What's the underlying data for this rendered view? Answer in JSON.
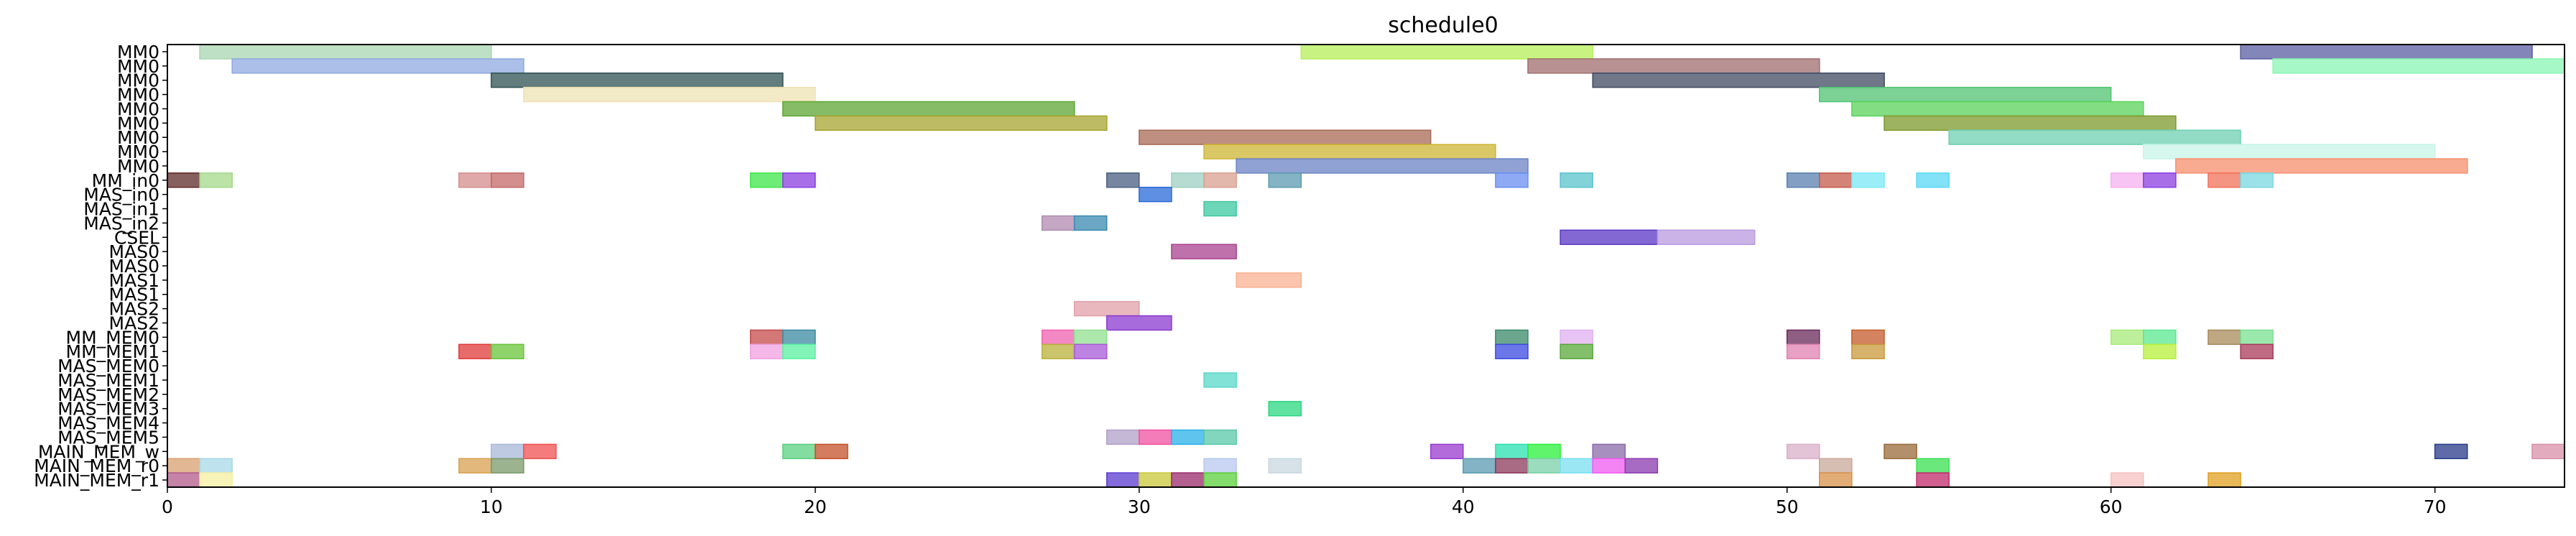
{
  "chart_data": {
    "type": "gantt",
    "title": "schedule0",
    "xlabel": "",
    "ylabel": "",
    "xlim": [
      0,
      74
    ],
    "xticks": [
      0,
      10,
      20,
      30,
      40,
      50,
      60,
      70
    ],
    "grid": false,
    "rows": [
      "MM0",
      "MM0",
      "MM0",
      "MM0",
      "MM0",
      "MM0",
      "MM0",
      "MM0",
      "MM0",
      "MM_in0",
      "MAS_in0",
      "MAS_in1",
      "MAS_in2",
      "CSEL",
      "MAS0",
      "MAS0",
      "MAS1",
      "MAS1",
      "MAS2",
      "MAS2",
      "MM_MEM0",
      "MM_MEM1",
      "MAS_MEM0",
      "MAS_MEM1",
      "MAS_MEM2",
      "MAS_MEM3",
      "MAS_MEM4",
      "MAS_MEM5",
      "MAIN_MEM_w",
      "MAIN_MEM_r0",
      "MAIN_MEM_r1"
    ],
    "bars": [
      {
        "row": 0,
        "start": 1,
        "end": 10,
        "color": "#a8d5b0"
      },
      {
        "row": 0,
        "start": 35,
        "end": 44,
        "color": "#b5ef5a"
      },
      {
        "row": 0,
        "start": 64,
        "end": 73,
        "color": "#5a5ea0"
      },
      {
        "row": 1,
        "start": 2,
        "end": 11,
        "color": "#8fa9e0"
      },
      {
        "row": 1,
        "start": 42,
        "end": 51,
        "color": "#a06e6e"
      },
      {
        "row": 1,
        "start": 65,
        "end": 74,
        "color": "#8af5b4"
      },
      {
        "row": 2,
        "start": 10,
        "end": 19,
        "color": "#2f5052"
      },
      {
        "row": 2,
        "start": 44,
        "end": 53,
        "color": "#3f4a60"
      },
      {
        "row": 3,
        "start": 11,
        "end": 20,
        "color": "#ede2b4"
      },
      {
        "row": 3,
        "start": 51,
        "end": 60,
        "color": "#4fc370"
      },
      {
        "row": 4,
        "start": 19,
        "end": 28,
        "color": "#5da631"
      },
      {
        "row": 4,
        "start": 52,
        "end": 61,
        "color": "#5ad35a"
      },
      {
        "row": 5,
        "start": 20,
        "end": 29,
        "color": "#a7a42f"
      },
      {
        "row": 5,
        "start": 53,
        "end": 62,
        "color": "#7d9a2c"
      },
      {
        "row": 6,
        "start": 30,
        "end": 39,
        "color": "#a86a55"
      },
      {
        "row": 6,
        "start": 55,
        "end": 64,
        "color": "#6ecfb2"
      },
      {
        "row": 7,
        "start": 32,
        "end": 41,
        "color": "#cdb534"
      },
      {
        "row": 7,
        "start": 61,
        "end": 70,
        "color": "#c7f4e8"
      },
      {
        "row": 8,
        "start": 33,
        "end": 42,
        "color": "#6a83c4"
      },
      {
        "row": 8,
        "start": 62,
        "end": 71,
        "color": "#f78f6e"
      },
      {
        "row": 9,
        "start": 0,
        "end": 1,
        "color": "#5e2a2a"
      },
      {
        "row": 9,
        "start": 1,
        "end": 2,
        "color": "#a4d98a"
      },
      {
        "row": 9,
        "start": 9,
        "end": 10,
        "color": "#d48c8c"
      },
      {
        "row": 9,
        "start": 10,
        "end": 11,
        "color": "#c46868"
      },
      {
        "row": 9,
        "start": 18,
        "end": 19,
        "color": "#3ee64a"
      },
      {
        "row": 9,
        "start": 19,
        "end": 20,
        "color": "#8a3de0"
      },
      {
        "row": 9,
        "start": 29,
        "end": 30,
        "color": "#4a5e80"
      },
      {
        "row": 9,
        "start": 31,
        "end": 32,
        "color": "#9ecfc0"
      },
      {
        "row": 9,
        "start": 32,
        "end": 33,
        "color": "#d9a090"
      },
      {
        "row": 9,
        "start": 34,
        "end": 35,
        "color": "#5a9ab0"
      },
      {
        "row": 9,
        "start": 41,
        "end": 42,
        "color": "#6a8ef0"
      },
      {
        "row": 9,
        "start": 43,
        "end": 44,
        "color": "#5ac2cc"
      },
      {
        "row": 9,
        "start": 50,
        "end": 51,
        "color": "#5a80b0"
      },
      {
        "row": 9,
        "start": 51,
        "end": 52,
        "color": "#c45a4a"
      },
      {
        "row": 9,
        "start": 52,
        "end": 53,
        "color": "#7ae8f5"
      },
      {
        "row": 9,
        "start": 54,
        "end": 55,
        "color": "#5ad8f5"
      },
      {
        "row": 9,
        "start": 60,
        "end": 61,
        "color": "#f5b0f0"
      },
      {
        "row": 9,
        "start": 61,
        "end": 62,
        "color": "#8a3de0"
      },
      {
        "row": 9,
        "start": 63,
        "end": 64,
        "color": "#f07058"
      },
      {
        "row": 9,
        "start": 64,
        "end": 65,
        "color": "#7ad8e0"
      },
      {
        "row": 10,
        "start": 30,
        "end": 31,
        "color": "#2a6ad8"
      },
      {
        "row": 11,
        "start": 32,
        "end": 33,
        "color": "#3ec8a0"
      },
      {
        "row": 12,
        "start": 27,
        "end": 28,
        "color": "#b08ab0"
      },
      {
        "row": 12,
        "start": 28,
        "end": 29,
        "color": "#3a8ab0"
      },
      {
        "row": 13,
        "start": 43,
        "end": 46,
        "color": "#5a36c4"
      },
      {
        "row": 13,
        "start": 46,
        "end": 49,
        "color": "#b99ae0"
      },
      {
        "row": 14,
        "start": 31,
        "end": 33,
        "color": "#a8428e"
      },
      {
        "row": 16,
        "start": 33,
        "end": 35,
        "color": "#f9b090"
      },
      {
        "row": 18,
        "start": 28,
        "end": 30,
        "color": "#e0a0a8"
      },
      {
        "row": 19,
        "start": 29,
        "end": 31,
        "color": "#8a3ad0"
      },
      {
        "row": 20,
        "start": 18,
        "end": 19,
        "color": "#c44a4a"
      },
      {
        "row": 20,
        "start": 19,
        "end": 20,
        "color": "#3a8aa0"
      },
      {
        "row": 20,
        "start": 27,
        "end": 28,
        "color": "#f060b0"
      },
      {
        "row": 20,
        "start": 28,
        "end": 29,
        "color": "#90e090"
      },
      {
        "row": 20,
        "start": 41,
        "end": 42,
        "color": "#3a8a6a"
      },
      {
        "row": 20,
        "start": 43,
        "end": 44,
        "color": "#e0b0f0"
      },
      {
        "row": 20,
        "start": 50,
        "end": 51,
        "color": "#6a2a5a"
      },
      {
        "row": 20,
        "start": 52,
        "end": 53,
        "color": "#c45a2a"
      },
      {
        "row": 20,
        "start": 60,
        "end": 61,
        "color": "#a8ea7a"
      },
      {
        "row": 20,
        "start": 61,
        "end": 62,
        "color": "#5ae890"
      },
      {
        "row": 20,
        "start": 63,
        "end": 64,
        "color": "#a88a5a"
      },
      {
        "row": 20,
        "start": 64,
        "end": 65,
        "color": "#7ae090"
      },
      {
        "row": 21,
        "start": 9,
        "end": 10,
        "color": "#e03a3a"
      },
      {
        "row": 21,
        "start": 10,
        "end": 11,
        "color": "#6ac43a"
      },
      {
        "row": 21,
        "start": 18,
        "end": 19,
        "color": "#f0a0e0"
      },
      {
        "row": 21,
        "start": 19,
        "end": 20,
        "color": "#5af0a0"
      },
      {
        "row": 21,
        "start": 27,
        "end": 28,
        "color": "#b8b03a"
      },
      {
        "row": 21,
        "start": 28,
        "end": 29,
        "color": "#a85ad8"
      },
      {
        "row": 21,
        "start": 41,
        "end": 42,
        "color": "#3a4ae0"
      },
      {
        "row": 21,
        "start": 43,
        "end": 44,
        "color": "#5aa83a"
      },
      {
        "row": 21,
        "start": 50,
        "end": 51,
        "color": "#e080b0"
      },
      {
        "row": 21,
        "start": 52,
        "end": 53,
        "color": "#c8983a"
      },
      {
        "row": 21,
        "start": 61,
        "end": 62,
        "color": "#b5ef3a"
      },
      {
        "row": 21,
        "start": 64,
        "end": 65,
        "color": "#a83a5a"
      },
      {
        "row": 23,
        "start": 32,
        "end": 33,
        "color": "#5ad8c8"
      },
      {
        "row": 25,
        "start": 34,
        "end": 35,
        "color": "#2ad880"
      },
      {
        "row": 27,
        "start": 29,
        "end": 30,
        "color": "#b0a0c8"
      },
      {
        "row": 27,
        "start": 30,
        "end": 31,
        "color": "#f050a0"
      },
      {
        "row": 27,
        "start": 31,
        "end": 32,
        "color": "#2ab0e8"
      },
      {
        "row": 27,
        "start": 32,
        "end": 33,
        "color": "#5ac8a8"
      },
      {
        "row": 28,
        "start": 10,
        "end": 11,
        "color": "#a8b8d8"
      },
      {
        "row": 28,
        "start": 11,
        "end": 12,
        "color": "#f05050"
      },
      {
        "row": 28,
        "start": 19,
        "end": 20,
        "color": "#5ad080"
      },
      {
        "row": 28,
        "start": 20,
        "end": 21,
        "color": "#c4502a"
      },
      {
        "row": 28,
        "start": 39,
        "end": 40,
        "color": "#9a3ad0"
      },
      {
        "row": 28,
        "start": 41,
        "end": 42,
        "color": "#2ae0b0"
      },
      {
        "row": 28,
        "start": 42,
        "end": 43,
        "color": "#2af03a"
      },
      {
        "row": 28,
        "start": 44,
        "end": 45,
        "color": "#8a6aa8"
      },
      {
        "row": 28,
        "start": 50,
        "end": 51,
        "color": "#d8b0c8"
      },
      {
        "row": 28,
        "start": 53,
        "end": 54,
        "color": "#9a6a3a"
      },
      {
        "row": 28,
        "start": 70,
        "end": 71,
        "color": "#2a3a8a"
      },
      {
        "row": 28,
        "start": 73,
        "end": 74,
        "color": "#d890a8"
      },
      {
        "row": 29,
        "start": 0,
        "end": 1,
        "color": "#d8a070"
      },
      {
        "row": 29,
        "start": 1,
        "end": 2,
        "color": "#a8d8e8"
      },
      {
        "row": 29,
        "start": 9,
        "end": 10,
        "color": "#d8a050"
      },
      {
        "row": 29,
        "start": 10,
        "end": 11,
        "color": "#7a9a6a"
      },
      {
        "row": 29,
        "start": 32,
        "end": 33,
        "color": "#b8c8f0"
      },
      {
        "row": 29,
        "start": 34,
        "end": 35,
        "color": "#c8d8e0"
      },
      {
        "row": 29,
        "start": 40,
        "end": 41,
        "color": "#5a9ab0"
      },
      {
        "row": 29,
        "start": 41,
        "end": 42,
        "color": "#8a3a5a"
      },
      {
        "row": 29,
        "start": 42,
        "end": 43,
        "color": "#7ad0a8"
      },
      {
        "row": 29,
        "start": 43,
        "end": 44,
        "color": "#7ae0f0"
      },
      {
        "row": 29,
        "start": 44,
        "end": 45,
        "color": "#f05af0"
      },
      {
        "row": 29,
        "start": 45,
        "end": 46,
        "color": "#8a3ab0"
      },
      {
        "row": 29,
        "start": 51,
        "end": 52,
        "color": "#c8a898"
      },
      {
        "row": 29,
        "start": 54,
        "end": 55,
        "color": "#3ae050"
      },
      {
        "row": 30,
        "start": 0,
        "end": 1,
        "color": "#b05a8a"
      },
      {
        "row": 30,
        "start": 1,
        "end": 2,
        "color": "#f5f0a0"
      },
      {
        "row": 30,
        "start": 29,
        "end": 30,
        "color": "#5a3ad0"
      },
      {
        "row": 30,
        "start": 30,
        "end": 31,
        "color": "#c8c83a"
      },
      {
        "row": 30,
        "start": 31,
        "end": 32,
        "color": "#9a2a6a"
      },
      {
        "row": 30,
        "start": 32,
        "end": 33,
        "color": "#5ad03a"
      },
      {
        "row": 30,
        "start": 51,
        "end": 52,
        "color": "#d8904a"
      },
      {
        "row": 30,
        "start": 54,
        "end": 55,
        "color": "#c02a6a"
      },
      {
        "row": 30,
        "start": 60,
        "end": 61,
        "color": "#f5c0c0"
      },
      {
        "row": 30,
        "start": 63,
        "end": 64,
        "color": "#e0a020"
      }
    ]
  }
}
